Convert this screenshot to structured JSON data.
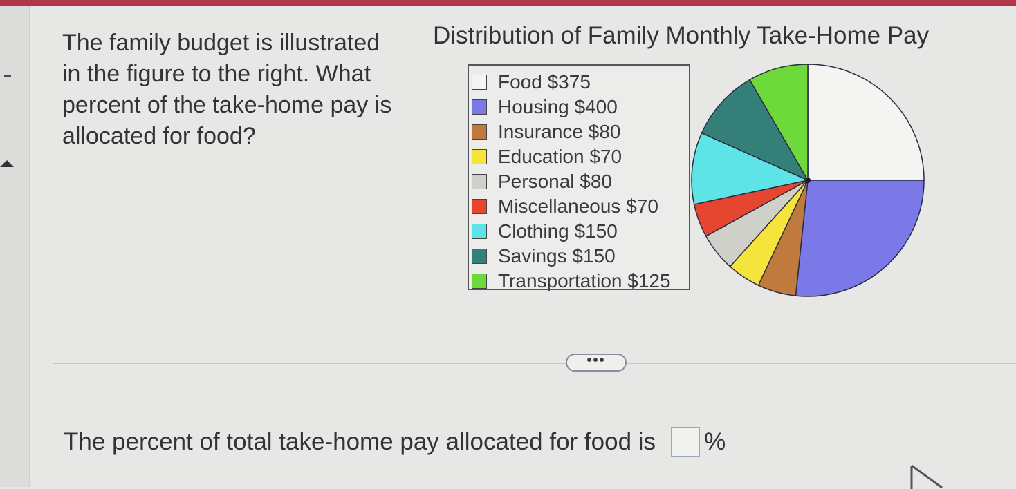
{
  "question": {
    "lines": [
      "The family budget is illustrated",
      "in the figure to the right. What",
      "percent of the take-home pay is",
      "allocated for food?"
    ]
  },
  "chart_data": {
    "type": "pie",
    "title": "Distribution of Family Monthly Take-Home Pay",
    "legend_position": "left",
    "slices": [
      {
        "label": "Food $375",
        "name": "Food",
        "value": 375,
        "color": "#f4f4f2"
      },
      {
        "label": "Housing $400",
        "name": "Housing",
        "value": 400,
        "color": "#7b79e8"
      },
      {
        "label": "Insurance $80",
        "name": "Insurance",
        "value": 80,
        "color": "#c07a3e"
      },
      {
        "label": "Education $70",
        "name": "Education",
        "value": 70,
        "color": "#f4e43c"
      },
      {
        "label": "Personal $80",
        "name": "Personal",
        "value": 80,
        "color": "#cfd0ca"
      },
      {
        "label": "Miscellaneous $70",
        "name": "Miscellaneous",
        "value": 70,
        "color": "#e6452f"
      },
      {
        "label": "Clothing $150",
        "name": "Clothing",
        "value": 150,
        "color": "#5ee3e6"
      },
      {
        "label": "Savings $150",
        "name": "Savings",
        "value": 150,
        "color": "#347f78"
      },
      {
        "label": "Transportation $125",
        "name": "Transportation",
        "value": 125,
        "color": "#6ed93a"
      }
    ]
  },
  "show_more_label": "•••",
  "answer": {
    "prompt": "The percent of total take-home pay allocated for food is",
    "value": "",
    "unit": "%"
  }
}
